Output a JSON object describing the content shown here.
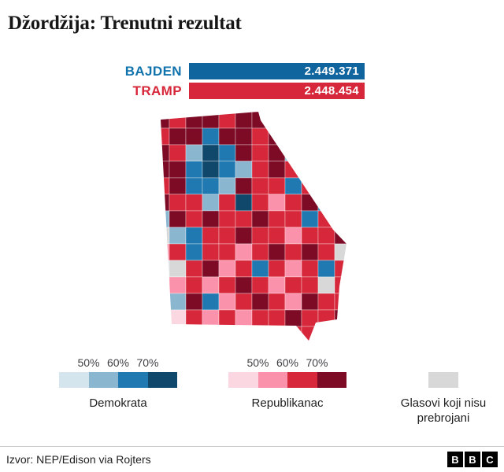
{
  "page": {
    "title": "Džordžija: Trenutni rezultat",
    "source": "Izvor: NEP/Edison via Rojters",
    "logo": [
      "B",
      "B",
      "C"
    ]
  },
  "chart_data": {
    "type": "bar",
    "title": "Džordžija: Trenutni rezultat",
    "categories": [
      "BAJDEN",
      "TRAMP"
    ],
    "values": [
      2449371,
      2448454
    ],
    "value_labels": [
      "2.449.371",
      "2.448.454"
    ],
    "bar_colors": [
      "#11659f",
      "#d6283a"
    ],
    "label_colors": [
      "#1173ad",
      "#d6283a"
    ],
    "xlim": [
      0,
      2449371
    ],
    "note": "paired with county-level choropleth map of Georgia"
  },
  "map": {
    "cell": 21,
    "palette": {
      "D": "#7d0b26",
      "R": "#d6283a",
      "p": "#fb92ab",
      "P": "#fbd7e2",
      "N": "#10486b",
      "B": "#2079b0",
      "b": "#8ab6d0",
      "L": "#d5e5ee",
      "G": "#d8d8d8"
    },
    "grid": [
      "DRDDRDDRDDDD",
      "RDDBDDRDDDRD",
      "DRbNBDRDbRDD",
      "DDBNBbRDRpRD",
      "RDBBbDRRBRDD",
      "DRRbRNRpRDBR",
      "bDRDRRDRRBRR",
      "GbBRRDRRpRRD",
      "pRBRRpRDRDRG",
      "LGRDpRBRpRBR",
      "LpRpRDRpRRGR",
      "PbDBpRDRpDRR",
      "pPRpRpRRDRRD",
      "RppRRpRDRRDR"
    ]
  },
  "legend": {
    "dem": {
      "ticks": [
        "50%",
        "60%",
        "70%"
      ],
      "colors": [
        "#d5e5ee",
        "#8ab6d0",
        "#2079b0",
        "#10486b"
      ],
      "label": "Demokrata"
    },
    "rep": {
      "ticks": [
        "50%",
        "60%",
        "70%"
      ],
      "colors": [
        "#fbd7e2",
        "#fb92ab",
        "#d6283a",
        "#7d0b26"
      ],
      "label": "Republikanac"
    },
    "uncounted": {
      "color": "#d8d8d8",
      "label": "Glasovi koji nisu prebrojani"
    }
  }
}
